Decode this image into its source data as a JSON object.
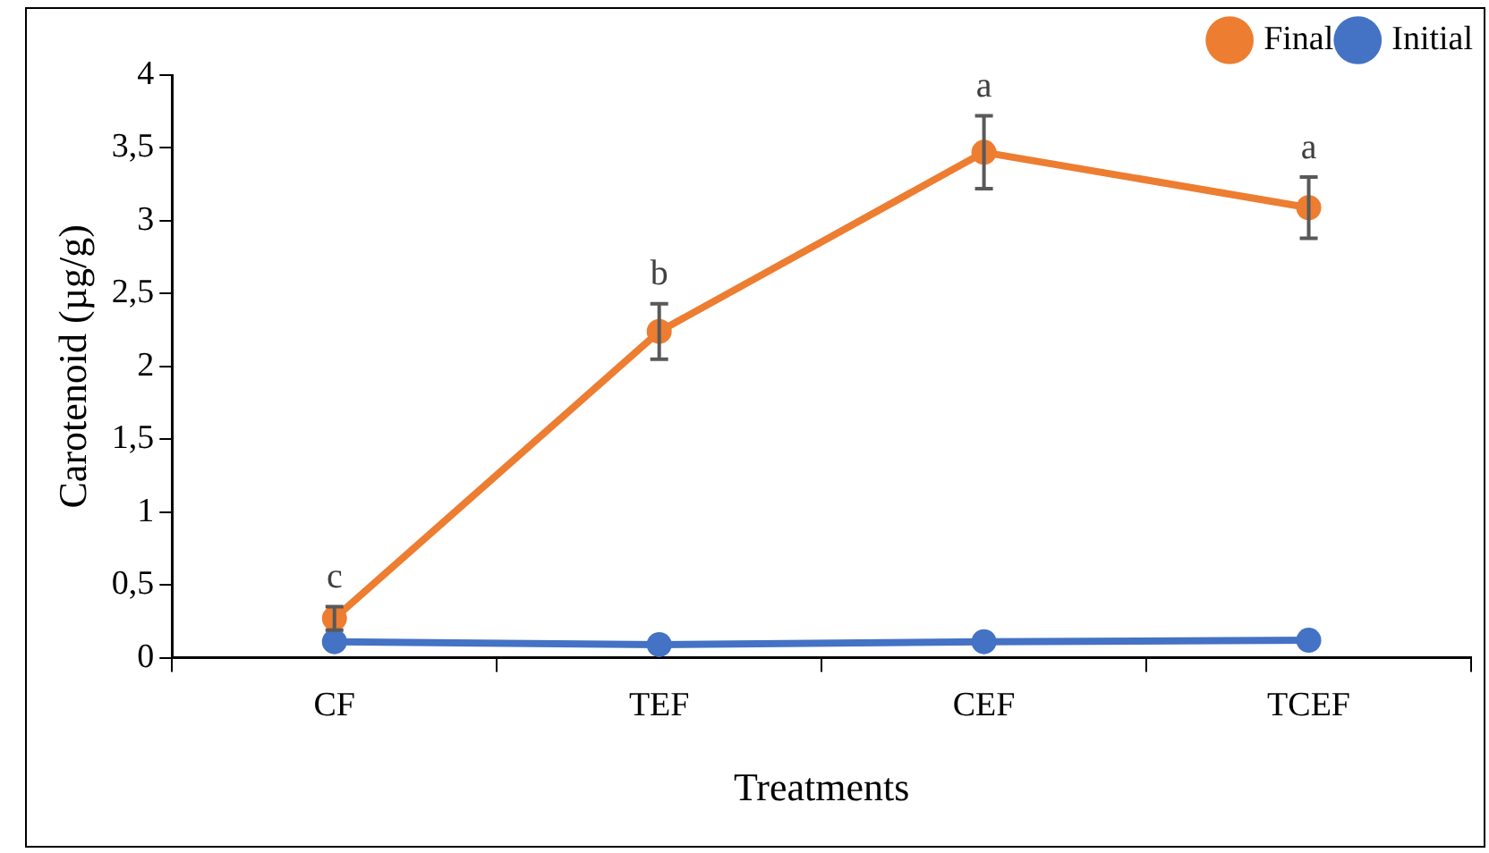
{
  "chart_data": {
    "type": "line",
    "xlabel": "Treatments",
    "ylabel": "Carotenoid (µg/g)",
    "categories": [
      "CF",
      "TEF",
      "CEF",
      "TCEF"
    ],
    "series": [
      {
        "name": "Final",
        "color": "#ed7d31",
        "values": [
          0.27,
          2.24,
          3.47,
          3.09
        ],
        "errors": [
          0.08,
          0.19,
          0.25,
          0.21
        ]
      },
      {
        "name": "Initial",
        "color": "#4472c4",
        "values": [
          0.11,
          0.09,
          0.11,
          0.12
        ]
      }
    ],
    "ylim": [
      0,
      4
    ],
    "yticks": [
      0,
      {
        "value": 0.5,
        "label": "0,5"
      },
      1,
      {
        "value": 1.5,
        "label": "1,5"
      },
      2,
      {
        "value": 2.5,
        "label": "2,5"
      },
      3,
      {
        "value": 3.5,
        "label": "3,5"
      },
      4
    ],
    "annotations": [
      "c",
      "b",
      "a",
      "a"
    ],
    "grid": false,
    "legend": "top right",
    "marker": "circle",
    "line_style": "solid"
  }
}
